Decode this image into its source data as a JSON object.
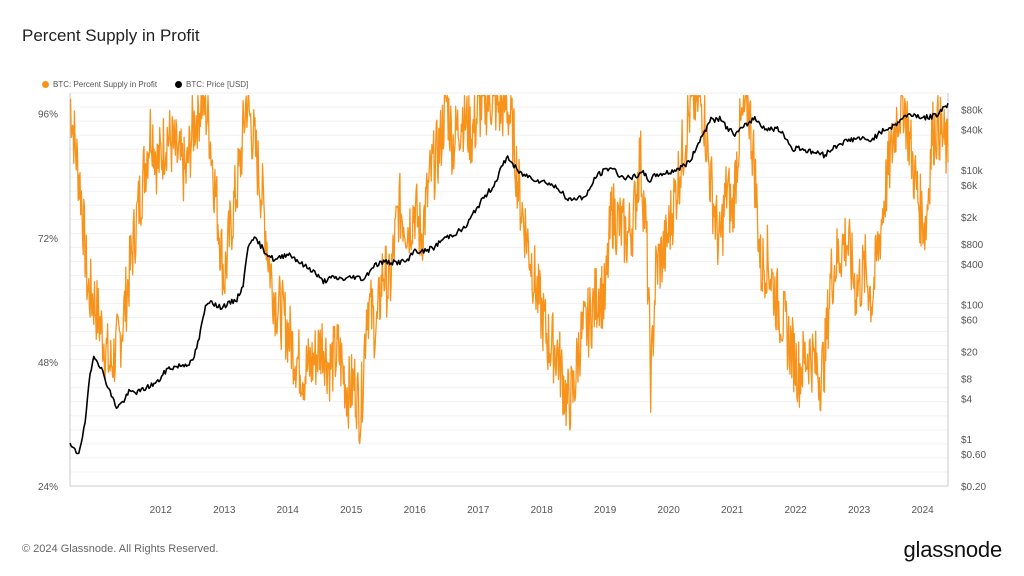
{
  "header": {
    "title": "Percent Supply in Profit"
  },
  "footer": {
    "copyright": "© 2024 Glassnode. All Rights Reserved.",
    "logo_text": "glassnode"
  },
  "colors": {
    "supply": "#F7931A",
    "price": "#000000",
    "grid": "#f1f1f1",
    "axis": "#c8c8c8"
  },
  "chart_data": {
    "type": "line",
    "title": "Percent Supply in Profit",
    "legend_position": "top-left",
    "grid": true,
    "x_ticks": [
      "2012",
      "2013",
      "2014",
      "2015",
      "2016",
      "2017",
      "2018",
      "2019",
      "2020",
      "2021",
      "2022",
      "2023",
      "2024"
    ],
    "x_range": [
      2011.07,
      2024.9
    ],
    "y_left": {
      "ticks": [
        "24%",
        "48%",
        "72%",
        "96%"
      ],
      "tick_values": [
        24,
        48,
        72,
        96
      ],
      "range": [
        24,
        100
      ]
    },
    "y_right": {
      "scale": "log",
      "ticks": [
        "$0.20",
        "$0.60",
        "$1",
        "$4",
        "$8",
        "$20",
        "$60",
        "$100",
        "$400",
        "$800",
        "$2k",
        "$6k",
        "$10k",
        "$40k",
        "$80k"
      ],
      "tick_values": [
        0.2,
        0.6,
        1,
        4,
        8,
        20,
        60,
        100,
        400,
        800,
        2000,
        6000,
        10000,
        40000,
        80000
      ]
    },
    "series": [
      {
        "name": "BTC: Percent Supply in Profit",
        "axis": "left",
        "x": [
          2011.07,
          2011.15,
          2011.25,
          2011.35,
          2011.45,
          2011.55,
          2011.7,
          2011.85,
          2011.95,
          2012.1,
          2012.25,
          2012.35,
          2012.45,
          2012.6,
          2012.75,
          2012.9,
          2013.0,
          2013.15,
          2013.25,
          2013.35,
          2013.5,
          2013.6,
          2013.75,
          2013.85,
          2013.95,
          2014.1,
          2014.2,
          2014.3,
          2014.45,
          2014.6,
          2014.75,
          2014.9,
          2015.05,
          2015.15,
          2015.3,
          2015.45,
          2015.55,
          2015.65,
          2015.75,
          2015.9,
          2016.0,
          2016.1,
          2016.25,
          2016.4,
          2016.5,
          2016.6,
          2016.75,
          2016.9,
          2017.0,
          2017.1,
          2017.25,
          2017.4,
          2017.55,
          2017.7,
          2017.85,
          2017.95,
          2018.05,
          2018.15,
          2018.3,
          2018.45,
          2018.6,
          2018.75,
          2018.9,
          2019.0,
          2019.1,
          2019.25,
          2019.4,
          2019.5,
          2019.6,
          2019.75,
          2019.85,
          2019.95,
          2020.05,
          2020.15,
          2020.22,
          2020.3,
          2020.45,
          2020.6,
          2020.75,
          2020.85,
          2020.95,
          2021.05,
          2021.15,
          2021.3,
          2021.42,
          2021.5,
          2021.6,
          2021.75,
          2021.85,
          2021.95,
          2022.05,
          2022.2,
          2022.35,
          2022.45,
          2022.55,
          2022.7,
          2022.8,
          2022.9,
          2022.97,
          2023.05,
          2023.15,
          2023.3,
          2023.45,
          2023.6,
          2023.7,
          2023.8,
          2023.9,
          2024.0,
          2024.1,
          2024.2,
          2024.35,
          2024.45,
          2024.55,
          2024.65,
          2024.75,
          2024.85,
          2024.9
        ],
        "values": [
          99,
          90,
          80,
          62,
          60,
          55,
          47,
          52,
          60,
          74,
          86,
          94,
          86,
          92,
          88,
          84,
          93,
          99,
          95,
          82,
          64,
          74,
          86,
          99,
          92,
          80,
          68,
          60,
          56,
          50,
          46,
          48,
          52,
          47,
          50,
          42,
          44,
          38,
          60,
          54,
          66,
          62,
          78,
          74,
          78,
          72,
          84,
          90,
          99,
          90,
          96,
          92,
          98,
          99,
          97,
          98,
          92,
          80,
          70,
          60,
          52,
          50,
          40,
          42,
          52,
          56,
          62,
          60,
          77,
          74,
          72,
          76,
          88,
          72,
          44,
          66,
          70,
          80,
          91,
          98,
          99,
          97,
          84,
          70,
          82,
          76,
          91,
          99,
          86,
          66,
          68,
          60,
          54,
          50,
          46,
          50,
          48,
          45,
          50,
          64,
          68,
          72,
          62,
          66,
          60,
          70,
          80,
          88,
          96,
          99,
          86,
          78,
          74,
          92,
          94,
          90,
          88
        ]
      },
      {
        "name": "BTC: Price [USD]",
        "axis": "right",
        "x": [
          2011.07,
          2011.2,
          2011.3,
          2011.38,
          2011.45,
          2011.55,
          2011.7,
          2011.8,
          2011.9,
          2012.0,
          2012.15,
          2012.3,
          2012.45,
          2012.6,
          2012.75,
          2012.9,
          2013.0,
          2013.1,
          2013.2,
          2013.28,
          2013.4,
          2013.55,
          2013.7,
          2013.8,
          2013.88,
          2013.95,
          2014.05,
          2014.15,
          2014.3,
          2014.5,
          2014.6,
          2014.75,
          2014.9,
          2015.05,
          2015.2,
          2015.4,
          2015.55,
          2015.7,
          2015.85,
          2016.0,
          2016.2,
          2016.4,
          2016.5,
          2016.6,
          2016.8,
          2016.95,
          2017.1,
          2017.3,
          2017.45,
          2017.6,
          2017.75,
          2017.85,
          2017.96,
          2018.05,
          2018.15,
          2018.3,
          2018.45,
          2018.6,
          2018.8,
          2018.9,
          2019.0,
          2019.2,
          2019.35,
          2019.5,
          2019.6,
          2019.75,
          2019.9,
          2020.1,
          2020.2,
          2020.3,
          2020.5,
          2020.7,
          2020.85,
          2020.95,
          2021.05,
          2021.15,
          2021.3,
          2021.45,
          2021.55,
          2021.7,
          2021.85,
          2021.95,
          2022.05,
          2022.2,
          2022.35,
          2022.45,
          2022.55,
          2022.7,
          2022.85,
          2022.95,
          2023.05,
          2023.2,
          2023.35,
          2023.5,
          2023.65,
          2023.8,
          2023.95,
          2024.05,
          2024.2,
          2024.35,
          2024.5,
          2024.65,
          2024.75,
          2024.85,
          2024.9
        ],
        "values": [
          0.8,
          0.6,
          1.5,
          8,
          18,
          12,
          5,
          3,
          3.5,
          5,
          5,
          6,
          7,
          11,
          12,
          13,
          14,
          30,
          90,
          120,
          90,
          100,
          120,
          200,
          800,
          1000,
          800,
          600,
          450,
          580,
          500,
          380,
          320,
          220,
          250,
          240,
          260,
          240,
          380,
          430,
          420,
          450,
          650,
          600,
          700,
          950,
          1100,
          1400,
          2500,
          4000,
          6000,
          10000,
          16000,
          12000,
          9000,
          8000,
          7000,
          6500,
          5000,
          3500,
          3800,
          4000,
          8000,
          10000,
          11000,
          8000,
          7500,
          9000,
          7000,
          8500,
          9200,
          11000,
          14000,
          24000,
          35000,
          55000,
          58000,
          40000,
          34000,
          45000,
          60000,
          48000,
          40000,
          42000,
          30000,
          20000,
          22000,
          19000,
          18000,
          16500,
          20000,
          25000,
          28000,
          30000,
          27000,
          34000,
          42000,
          45000,
          62000,
          68000,
          60000,
          62000,
          70000,
          90000,
          95000
        ]
      }
    ]
  }
}
